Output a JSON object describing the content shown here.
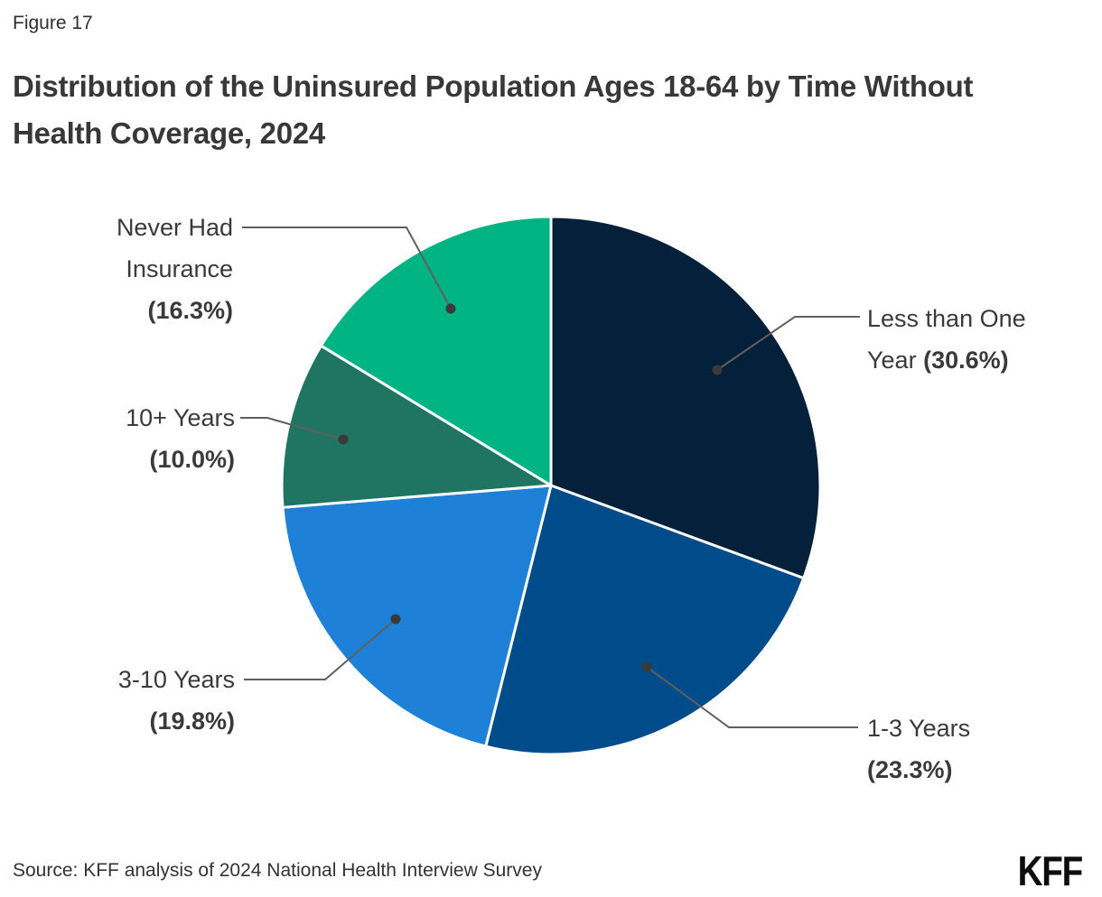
{
  "figure_label": "Figure 17",
  "title": "Distribution of the Uninsured Population Ages 18-64 by Time Without Health Coverage, 2024",
  "source": "Source: KFF analysis of 2024 National Health Interview Survey",
  "logo_text": "KFF",
  "colors": {
    "label_text": "#3a3a3a",
    "leader_line": "#5f5f5f",
    "leader_dot": "#3a3a3a",
    "slice_divider": "#ffffff"
  },
  "chart_data": {
    "type": "pie",
    "title": "Distribution of the Uninsured Population Ages 18-64 by Time Without Health Coverage, 2024",
    "start_angle_deg": 0,
    "direction": "clockwise",
    "legend_position": "outside-callouts",
    "slices": [
      {
        "label": "Less than One Year",
        "value": 30.6,
        "pct_display": "(30.6%)",
        "color": "#04203a"
      },
      {
        "label": "1-3 Years",
        "value": 23.3,
        "pct_display": "(23.3%)",
        "color": "#004b8a"
      },
      {
        "label": "3-10 Years",
        "value": 19.8,
        "pct_display": "(19.8%)",
        "color": "#1f80d8"
      },
      {
        "label": "10+ Years",
        "value": 10.0,
        "pct_display": "(10.0%)",
        "color": "#1f7562"
      },
      {
        "label": "Never Had Insurance",
        "value": 16.3,
        "pct_display": "(16.3%)",
        "color": "#00b383"
      }
    ]
  }
}
